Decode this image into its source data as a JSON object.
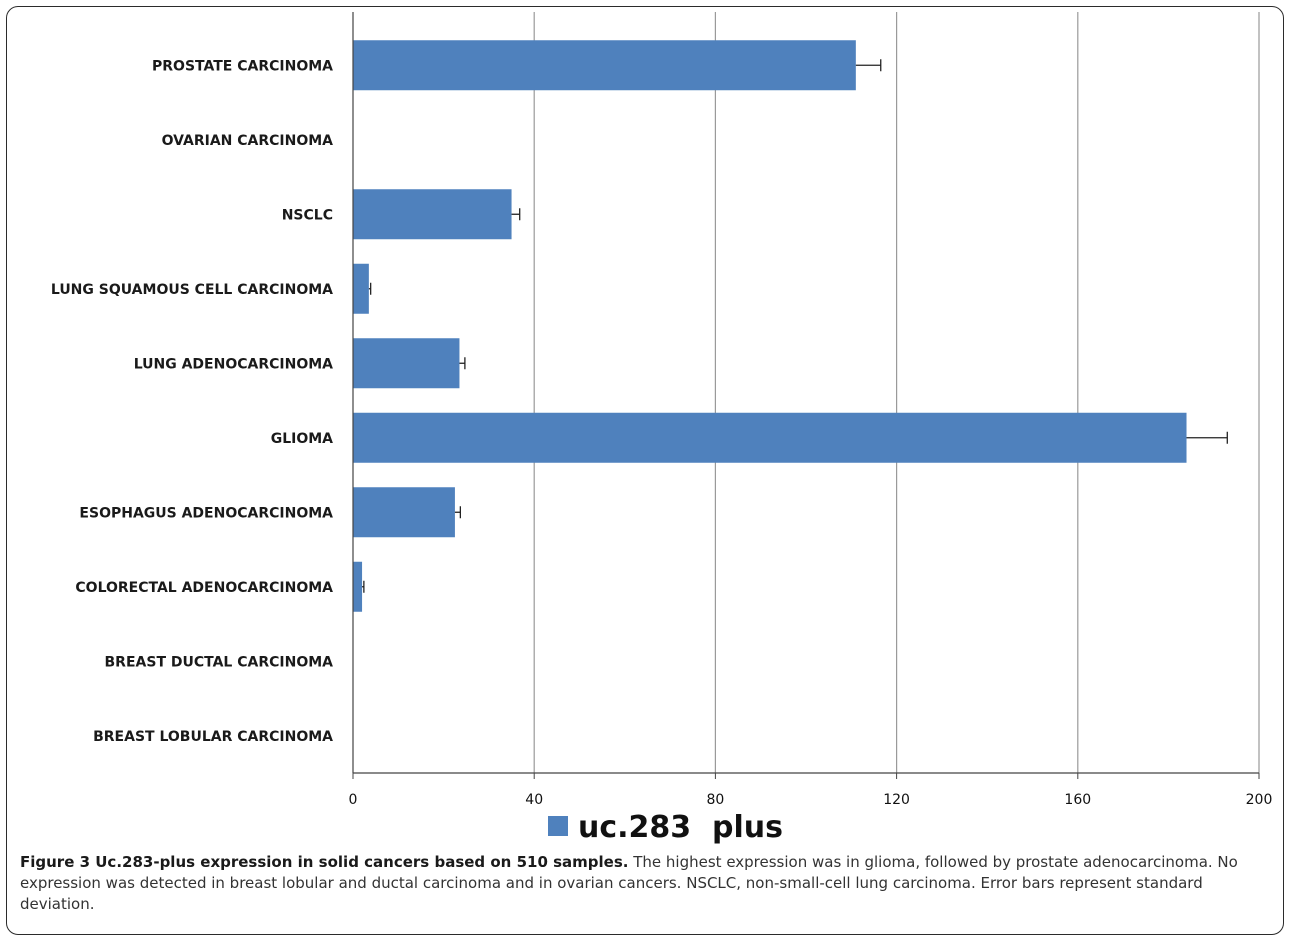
{
  "chart_data": {
    "type": "bar",
    "orientation": "horizontal",
    "categories": [
      "PROSTATE CARCINOMA",
      "OVARIAN CARCINOMA",
      "NSCLC",
      "LUNG SQUAMOUS CELL CARCINOMA",
      "LUNG ADENOCARCINOMA",
      "GLIOMA",
      "ESOPHAGUS ADENOCARCINOMA",
      "COLORECTAL ADENOCARCINOMA",
      "BREAST DUCTAL CARCINOMA",
      "BREAST LOBULAR CARCINOMA"
    ],
    "series": [
      {
        "name": "uc.283  plus",
        "values": [
          111,
          0,
          35,
          3.5,
          23.5,
          184,
          22.5,
          2,
          0,
          0
        ],
        "errors": [
          5.5,
          0,
          1.8,
          0.4,
          1.2,
          9,
          1.2,
          0.4,
          0,
          0
        ],
        "color": "#4f81bd"
      }
    ],
    "xlim": [
      0,
      200
    ],
    "xticks": [
      0,
      40,
      80,
      120,
      160,
      200
    ],
    "grid": true,
    "legend_position": "bottom",
    "title": "",
    "xlabel": "",
    "ylabel": ""
  },
  "caption": {
    "title": "Figure 3 Uc.283-plus expression in solid cancers based on 510 samples.",
    "text": " The highest expression was in glioma, followed by prostate adenocarcinoma. No expression was detected in breast lobular and ductal carcinoma and in ovarian cancers. NSCLC, non-small-cell lung carcinoma. Error bars represent standard deviation."
  },
  "colors": {
    "bar": "#4f81bd",
    "grid": "#9a9a9a",
    "axis": "#444444",
    "error_bar": "#222222"
  }
}
